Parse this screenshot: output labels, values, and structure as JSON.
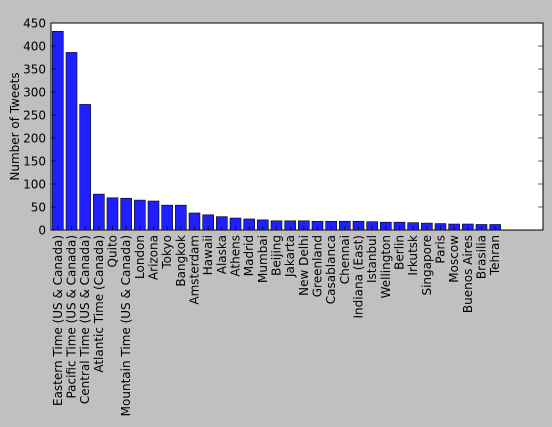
{
  "chart_data": {
    "type": "bar",
    "title": "",
    "xlabel": "",
    "ylabel": "Number of Tweets",
    "ylim": [
      0,
      450
    ],
    "yticks": [
      0,
      50,
      100,
      150,
      200,
      250,
      300,
      350,
      400,
      450
    ],
    "grid": false,
    "bar_color": "#1f1fff",
    "plot_background": "#ffffff",
    "figure_background": "#c0c0c0",
    "categories": [
      "Eastern Time (US & Canada)",
      "Pacific Time (US & Canada)",
      "Central Time (US & Canada)",
      "Atlantic Time (Canada)",
      "Quito",
      "Mountain Time (US & Canada)",
      "London",
      "Arizona",
      "Tokyo",
      "Bangkok",
      "Amsterdam",
      "Hawaii",
      "Alaska",
      "Athens",
      "Madrid",
      "Mumbai",
      "Beijing",
      "Jakarta",
      "New Delhi",
      "Greenland",
      "Casablanca",
      "Chennai",
      "Indiana (East)",
      "Istanbul",
      "Wellington",
      "Berlin",
      "Irkutsk",
      "Singapore",
      "Paris",
      "Moscow",
      "Buenos Aires",
      "Brasilia",
      "Tehran"
    ],
    "values": [
      432,
      386,
      273,
      78,
      70,
      69,
      65,
      63,
      54,
      54,
      37,
      33,
      29,
      26,
      24,
      22,
      20,
      20,
      20,
      19,
      19,
      19,
      19,
      18,
      17,
      17,
      16,
      15,
      14,
      13,
      13,
      12,
      12
    ]
  }
}
